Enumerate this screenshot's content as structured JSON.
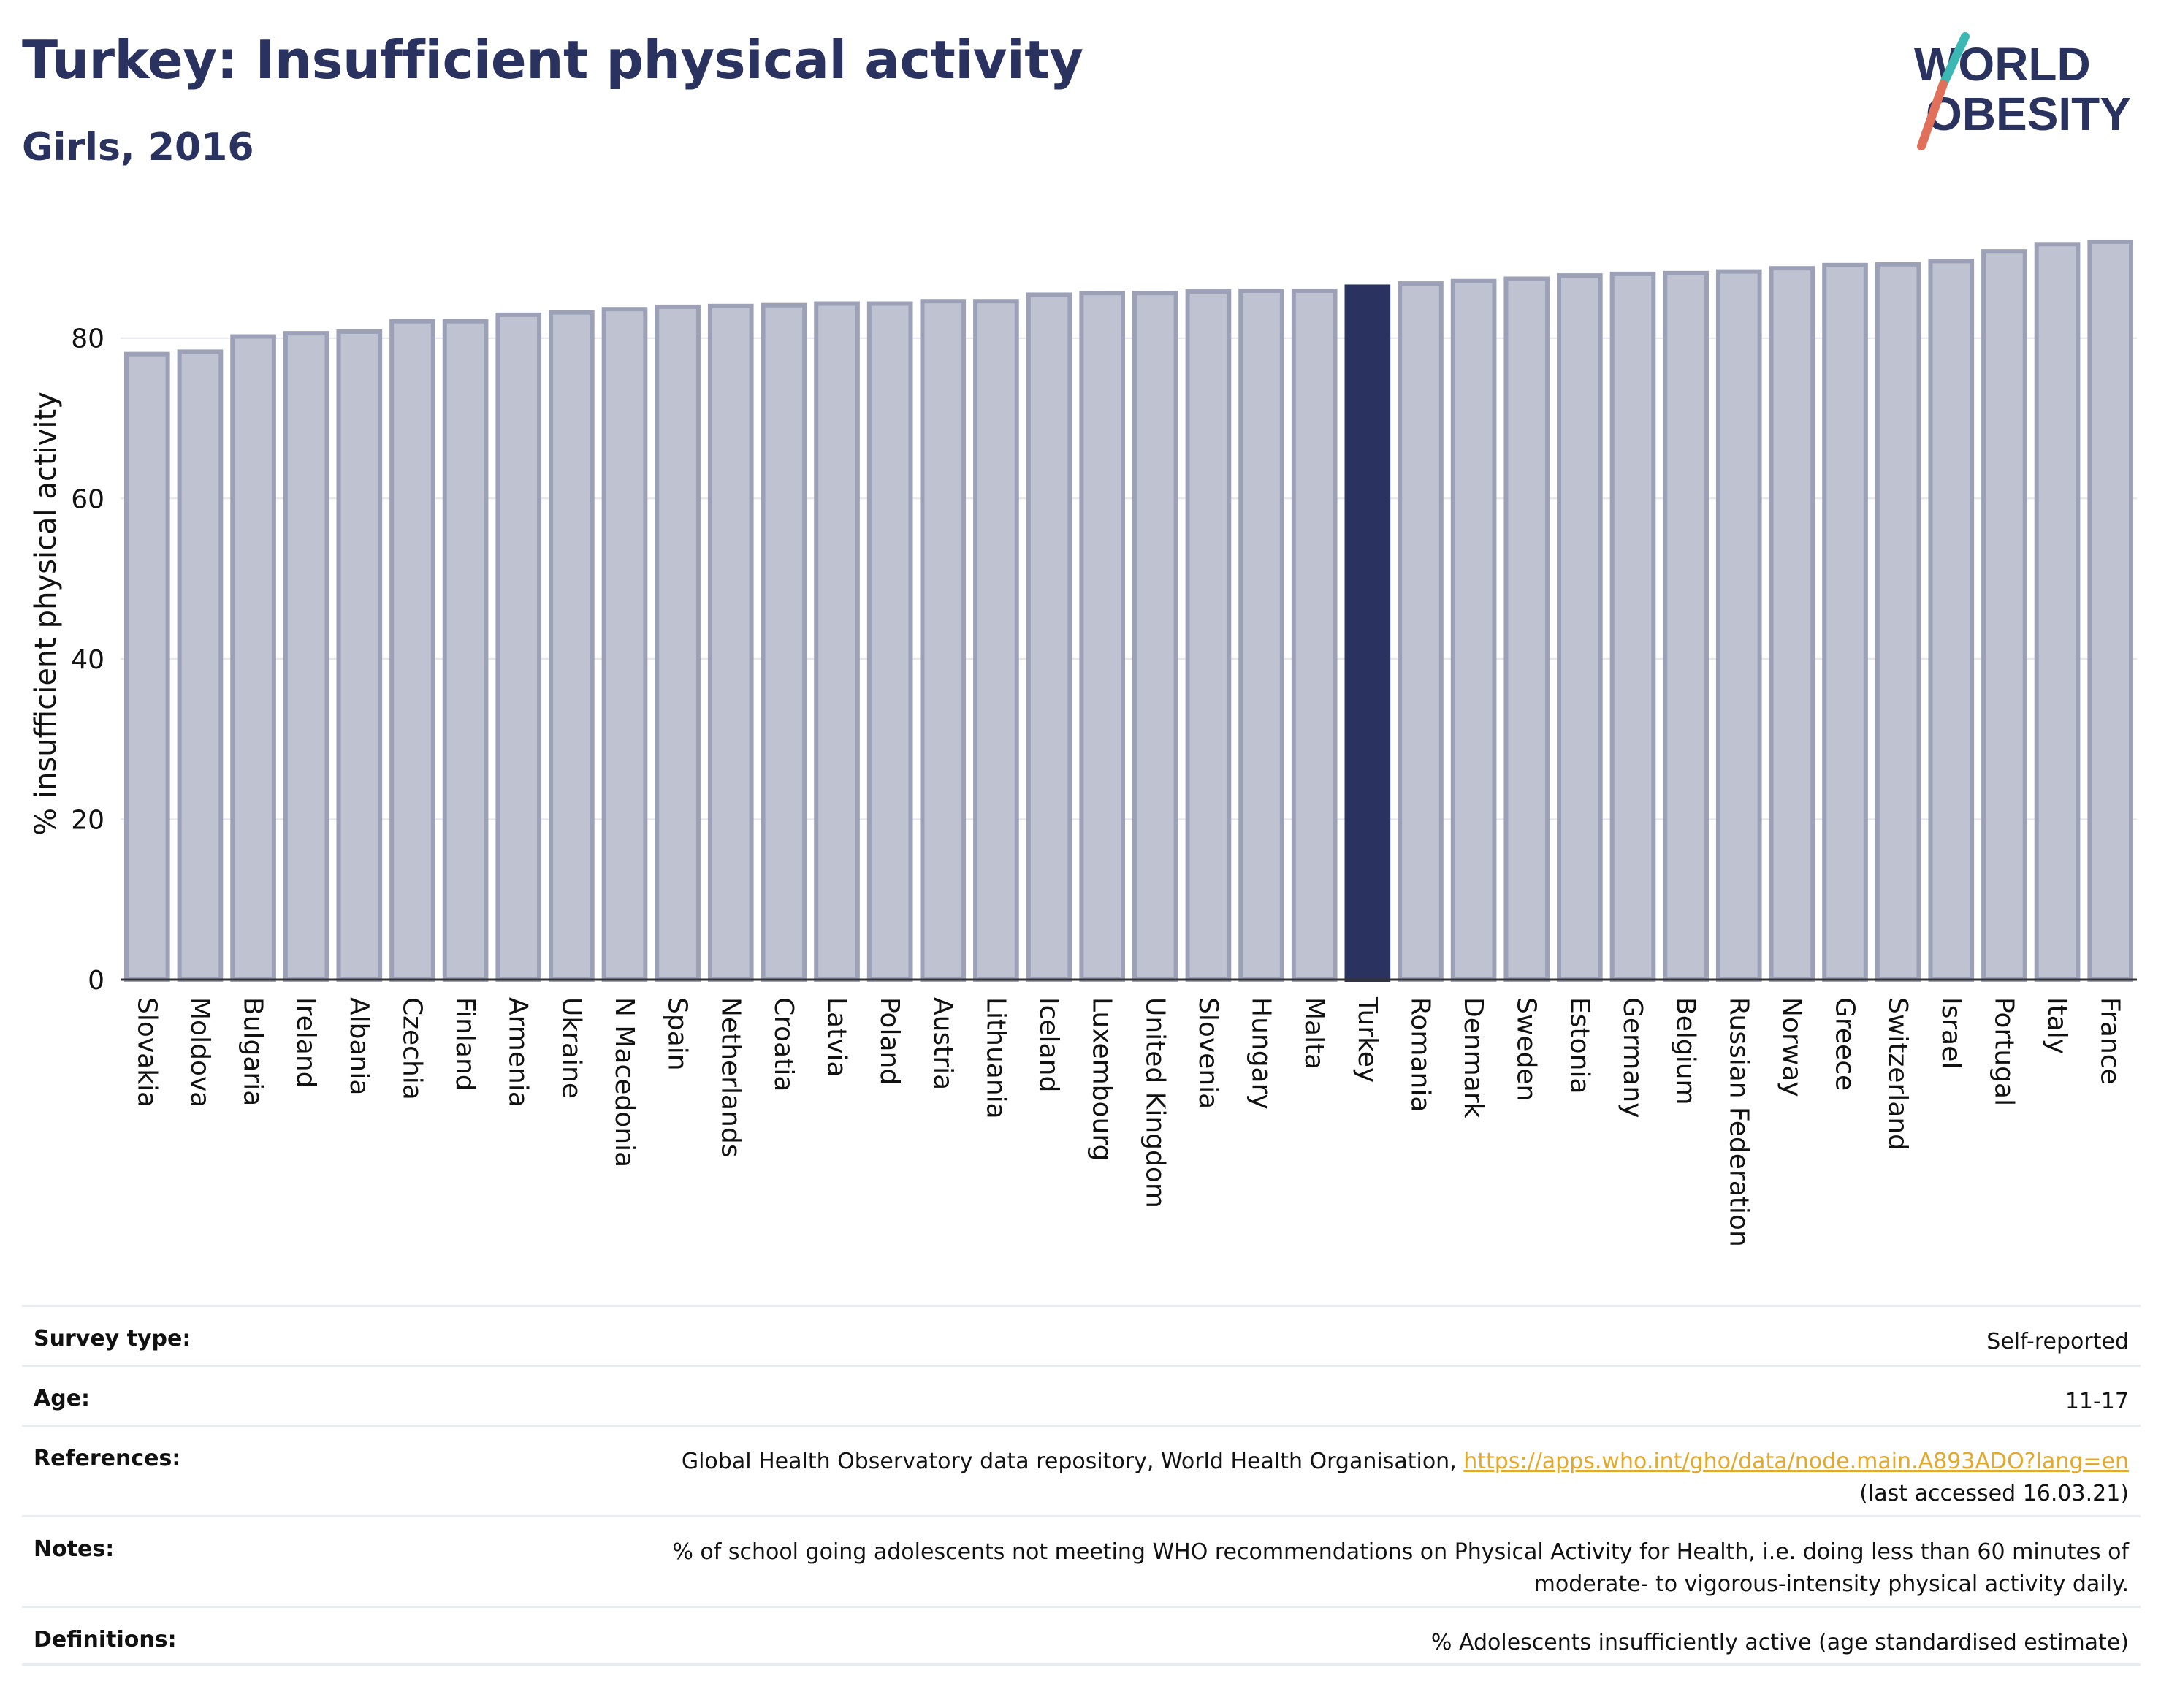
{
  "header": {
    "title": "Turkey: Insufficient physical activity",
    "subtitle": "Girls, 2016"
  },
  "logo": {
    "line1": "WORLD",
    "line2": "OBESITY"
  },
  "colors": {
    "highlight_bar": "#2a3360",
    "other_bar_fill": "#bfc2d0",
    "other_bar_stroke": "#9ca1b8",
    "title": "#2a3360",
    "link": "#e3a92b",
    "logo_teal": "#3bb8b4",
    "logo_red": "#e0705a"
  },
  "chart_data": {
    "type": "bar",
    "title": "Turkey: Insufficient physical activity",
    "subtitle": "Girls, 2016",
    "xlabel": "",
    "ylabel": "% insufficient physical activity",
    "ylim": [
      0,
      93
    ],
    "yticks": [
      0,
      20,
      40,
      60,
      80
    ],
    "grid": true,
    "highlight": "Turkey",
    "categories": [
      "Slovakia",
      "Moldova",
      "Bulgaria",
      "Ireland",
      "Albania",
      "Czechia",
      "Finland",
      "Armenia",
      "Ukraine",
      "N Macedonia",
      "Spain",
      "Netherlands",
      "Croatia",
      "Latvia",
      "Poland",
      "Austria",
      "Lithuania",
      "Iceland",
      "Luxembourg",
      "United Kingdom",
      "Slovenia",
      "Hungary",
      "Malta",
      "Turkey",
      "Romania",
      "Denmark",
      "Sweden",
      "Estonia",
      "Germany",
      "Belgium",
      "Russian Federation",
      "Norway",
      "Greece",
      "Switzerland",
      "Israel",
      "Portugal",
      "Italy",
      "France"
    ],
    "values": [
      78.0,
      78.3,
      80.2,
      80.6,
      80.8,
      82.1,
      82.1,
      82.9,
      83.2,
      83.6,
      83.9,
      84.0,
      84.1,
      84.3,
      84.3,
      84.6,
      84.6,
      85.4,
      85.6,
      85.6,
      85.8,
      85.9,
      85.9,
      86.4,
      86.8,
      87.1,
      87.4,
      87.8,
      88.0,
      88.1,
      88.3,
      88.7,
      89.1,
      89.2,
      89.6,
      90.8,
      91.7,
      92.0
    ]
  },
  "info": [
    {
      "label": "Survey type:",
      "value": "Self-reported"
    },
    {
      "label": "Age:",
      "value": "11-17"
    },
    {
      "label": "References:",
      "value": "Global Health Observatory data repository, World Health Organisation, ",
      "link": "https://apps.who.int/gho/data/node.main.A893ADO?lang=en",
      "value2": "(last accessed 16.03.21)"
    },
    {
      "label": "Notes:",
      "value": "% of school going adolescents not meeting WHO recommendations on Physical Activity for Health, i.e. doing less than 60 minutes of",
      "value2": "moderate- to vigorous-intensity physical activity daily."
    },
    {
      "label": "Definitions:",
      "value": "% Adolescents insufficiently active (age standardised estimate)"
    }
  ]
}
